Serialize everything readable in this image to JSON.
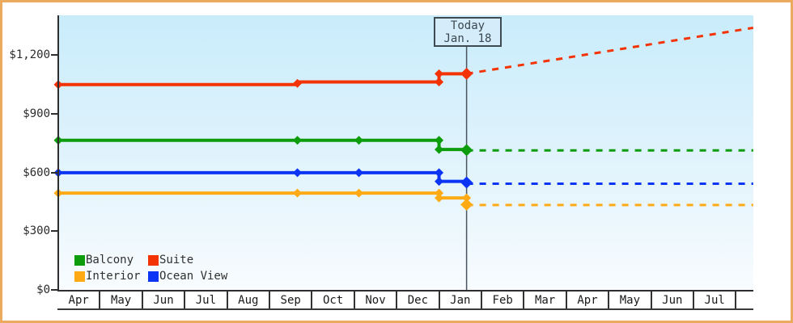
{
  "chart_data": {
    "type": "line",
    "title": "",
    "currency": "USD",
    "x_axis": {
      "tick_labels": [
        "Apr",
        "May",
        "Jun",
        "Jul",
        "Aug",
        "Sep",
        "Oct",
        "Nov",
        "Dec",
        "Jan",
        "Feb",
        "Mar",
        "Apr",
        "May",
        "Jun",
        "Jul"
      ],
      "unit": "month_offset (0 = start of first Apr cell)",
      "range_month_offset": [
        0,
        16.39
      ],
      "gridlines": false
    },
    "y_axis": {
      "tick_labels": [
        "$0",
        "$300",
        "$600",
        "$900",
        "$1,200"
      ],
      "tick_values": [
        0,
        300,
        600,
        900,
        1200
      ],
      "range": [
        0,
        1400
      ],
      "gridlines": false
    },
    "today_marker": {
      "line1": "Today",
      "line2": "Jan. 18",
      "month_offset": 9.63
    },
    "series": [
      {
        "name": "Suite",
        "color": "#f43305",
        "solid_points": [
          [
            0,
            1050
          ],
          [
            5.64,
            1050
          ],
          [
            5.64,
            1063
          ],
          [
            8.98,
            1063
          ],
          [
            8.98,
            1105
          ],
          [
            9.63,
            1105
          ]
        ],
        "markers": [
          [
            0,
            1050
          ],
          [
            5.64,
            1056
          ],
          [
            8.98,
            1063
          ],
          [
            8.98,
            1105
          ]
        ],
        "today_point": [
          9.63,
          1105
        ],
        "forecast": [
          [
            9.63,
            1105
          ],
          [
            16.39,
            1340
          ]
        ]
      },
      {
        "name": "Balcony",
        "color": "#0c9c0c",
        "solid_points": [
          [
            0,
            765
          ],
          [
            8.98,
            765
          ],
          [
            8.98,
            718
          ],
          [
            9.63,
            718
          ]
        ],
        "markers": [
          [
            0,
            765
          ],
          [
            5.64,
            765
          ],
          [
            7.09,
            765
          ],
          [
            8.98,
            765
          ],
          [
            8.98,
            718
          ]
        ],
        "today_point": [
          9.63,
          715
        ],
        "forecast": [
          [
            9.63,
            713
          ],
          [
            16.39,
            713
          ]
        ]
      },
      {
        "name": "Ocean View",
        "color": "#0b34f4",
        "solid_points": [
          [
            0,
            599
          ],
          [
            8.98,
            599
          ],
          [
            8.98,
            555
          ],
          [
            9.63,
            555
          ]
        ],
        "markers": [
          [
            0,
            599
          ],
          [
            5.64,
            599
          ],
          [
            7.09,
            599
          ],
          [
            8.98,
            599
          ],
          [
            8.98,
            555
          ]
        ],
        "today_point": [
          9.63,
          549
        ],
        "forecast": [
          [
            9.63,
            543
          ],
          [
            16.39,
            543
          ]
        ]
      },
      {
        "name": "Interior",
        "color": "#fdaa14",
        "solid_points": [
          [
            0,
            495
          ],
          [
            8.98,
            495
          ],
          [
            8.98,
            470
          ],
          [
            9.63,
            470
          ]
        ],
        "markers": [
          [
            0,
            495
          ],
          [
            5.64,
            495
          ],
          [
            7.09,
            495
          ],
          [
            8.98,
            495
          ],
          [
            8.98,
            470
          ],
          [
            9.63,
            470
          ]
        ],
        "today_point": [
          9.63,
          436
        ],
        "forecast": [
          [
            9.63,
            434
          ],
          [
            16.39,
            434
          ]
        ]
      }
    ],
    "legend": {
      "position": "bottom-left",
      "items": [
        {
          "label": "Balcony",
          "color": "#0c9c0c"
        },
        {
          "label": "Suite",
          "color": "#f43305"
        },
        {
          "label": "Interior",
          "color": "#fdaa14"
        },
        {
          "label": "Ocean View",
          "color": "#0b34f4"
        }
      ]
    },
    "frame_border_color": "#ecaa5e",
    "plot_background": [
      "#c9ecfb",
      "#f8fcfe"
    ]
  }
}
